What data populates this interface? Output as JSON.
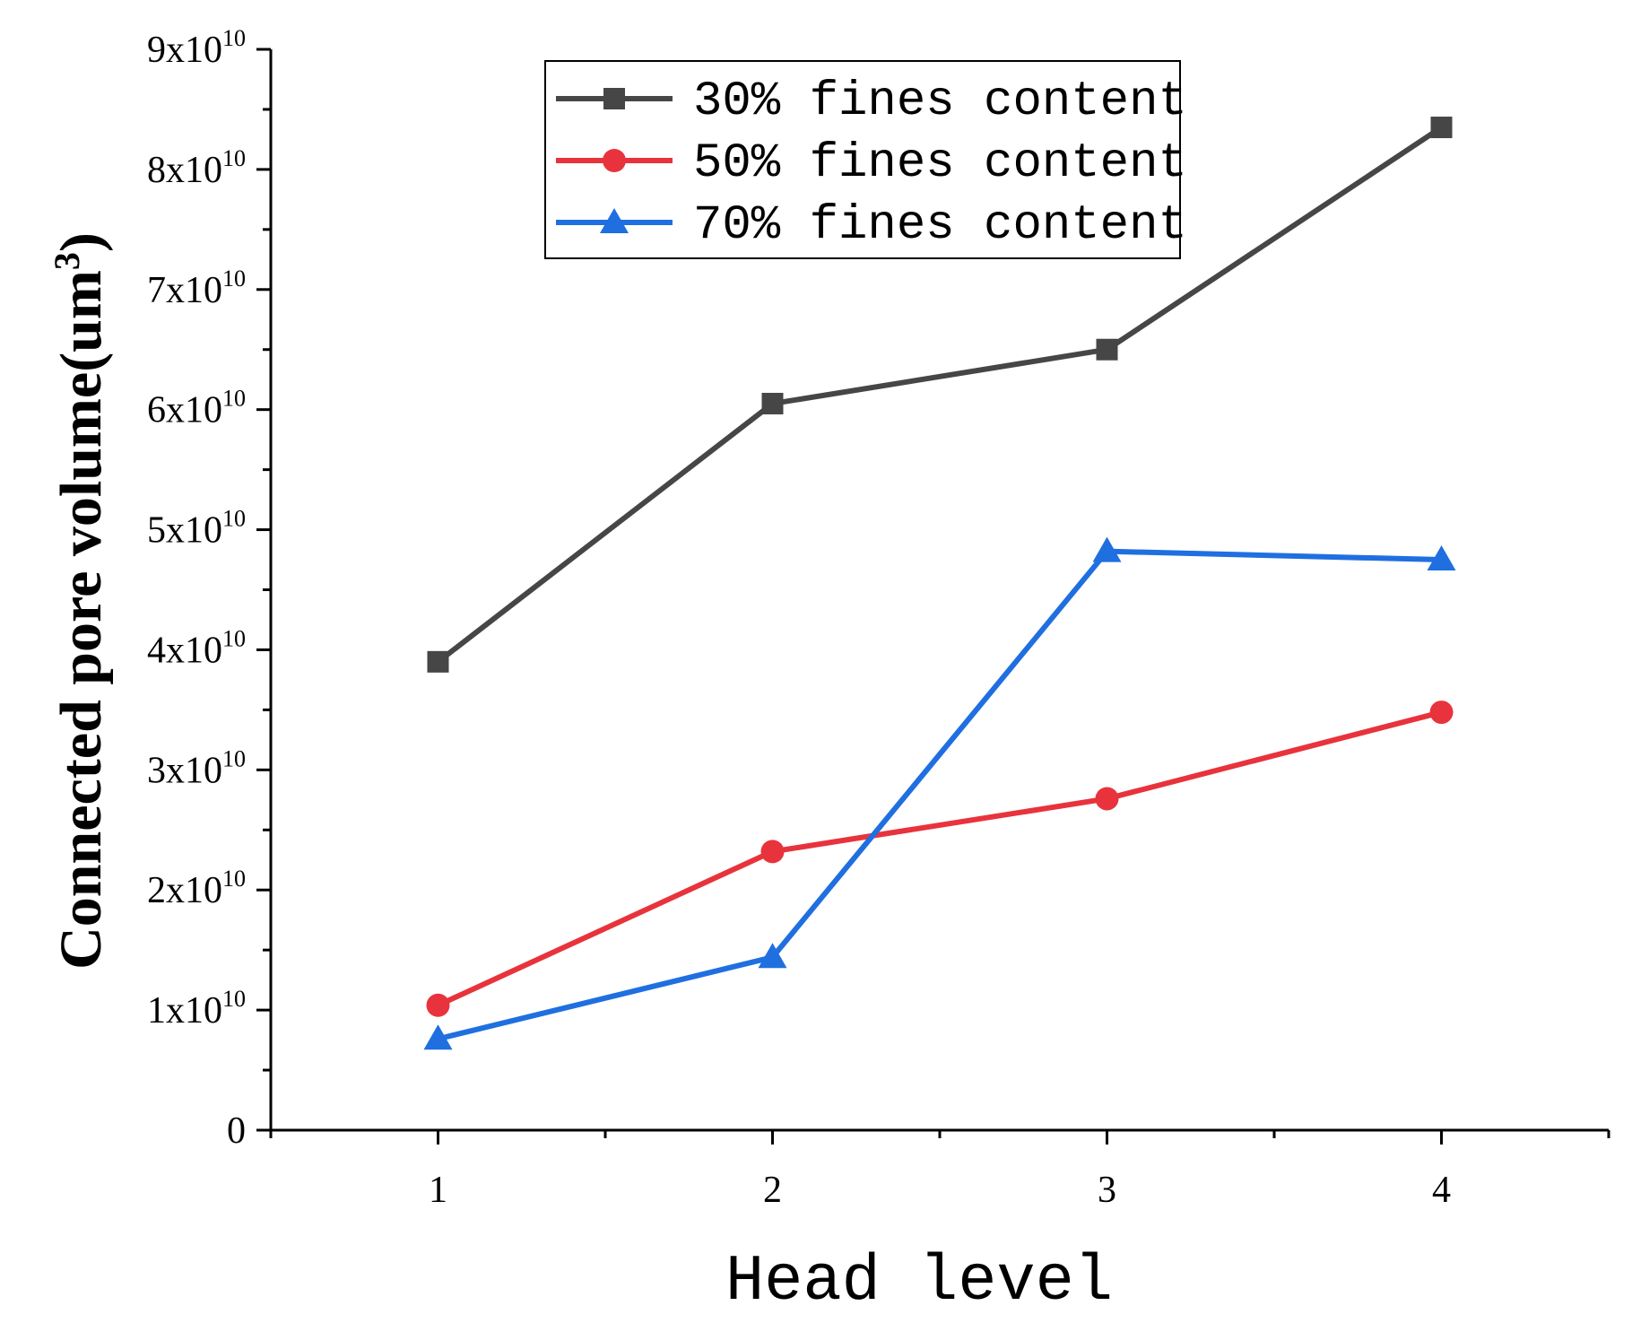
{
  "chart_data": {
    "type": "line",
    "title": "",
    "xlabel": "Head level",
    "ylabel": "Connected pore volume(um",
    "ylabel_superscript": "3",
    "ylabel_suffix": ")",
    "categories": [
      1,
      2,
      3,
      4
    ],
    "xlim": [
      0.5,
      4.5
    ],
    "ylim": [
      0,
      90000000000
    ],
    "x_ticks": [
      "1",
      "2",
      "3",
      "4"
    ],
    "y_ticks": [
      {
        "value": 0,
        "mantissa": "0",
        "exponent": ""
      },
      {
        "value": 10000000000,
        "mantissa": "1x10",
        "exponent": "10"
      },
      {
        "value": 20000000000,
        "mantissa": "2x10",
        "exponent": "10"
      },
      {
        "value": 30000000000,
        "mantissa": "3x10",
        "exponent": "10"
      },
      {
        "value": 40000000000,
        "mantissa": "4x10",
        "exponent": "10"
      },
      {
        "value": 50000000000,
        "mantissa": "5x10",
        "exponent": "10"
      },
      {
        "value": 60000000000,
        "mantissa": "6x10",
        "exponent": "10"
      },
      {
        "value": 70000000000,
        "mantissa": "7x10",
        "exponent": "10"
      },
      {
        "value": 80000000000,
        "mantissa": "8x10",
        "exponent": "10"
      },
      {
        "value": 90000000000,
        "mantissa": "9x10",
        "exponent": "10"
      }
    ],
    "grid": false,
    "legend_position": "top-center",
    "series": [
      {
        "name": "30% fines content",
        "marker": "square",
        "color": "#464646",
        "values": [
          39000000000,
          60500000000,
          65000000000,
          83500000000
        ]
      },
      {
        "name": "50% fines content",
        "marker": "circle",
        "color": "#e8333c",
        "values": [
          10400000000,
          23200000000,
          27600000000,
          34800000000
        ]
      },
      {
        "name": "70% fines content",
        "marker": "triangle",
        "color": "#1f6fe0",
        "values": [
          7600000000,
          14400000000,
          48200000000,
          47500000000
        ]
      }
    ]
  }
}
